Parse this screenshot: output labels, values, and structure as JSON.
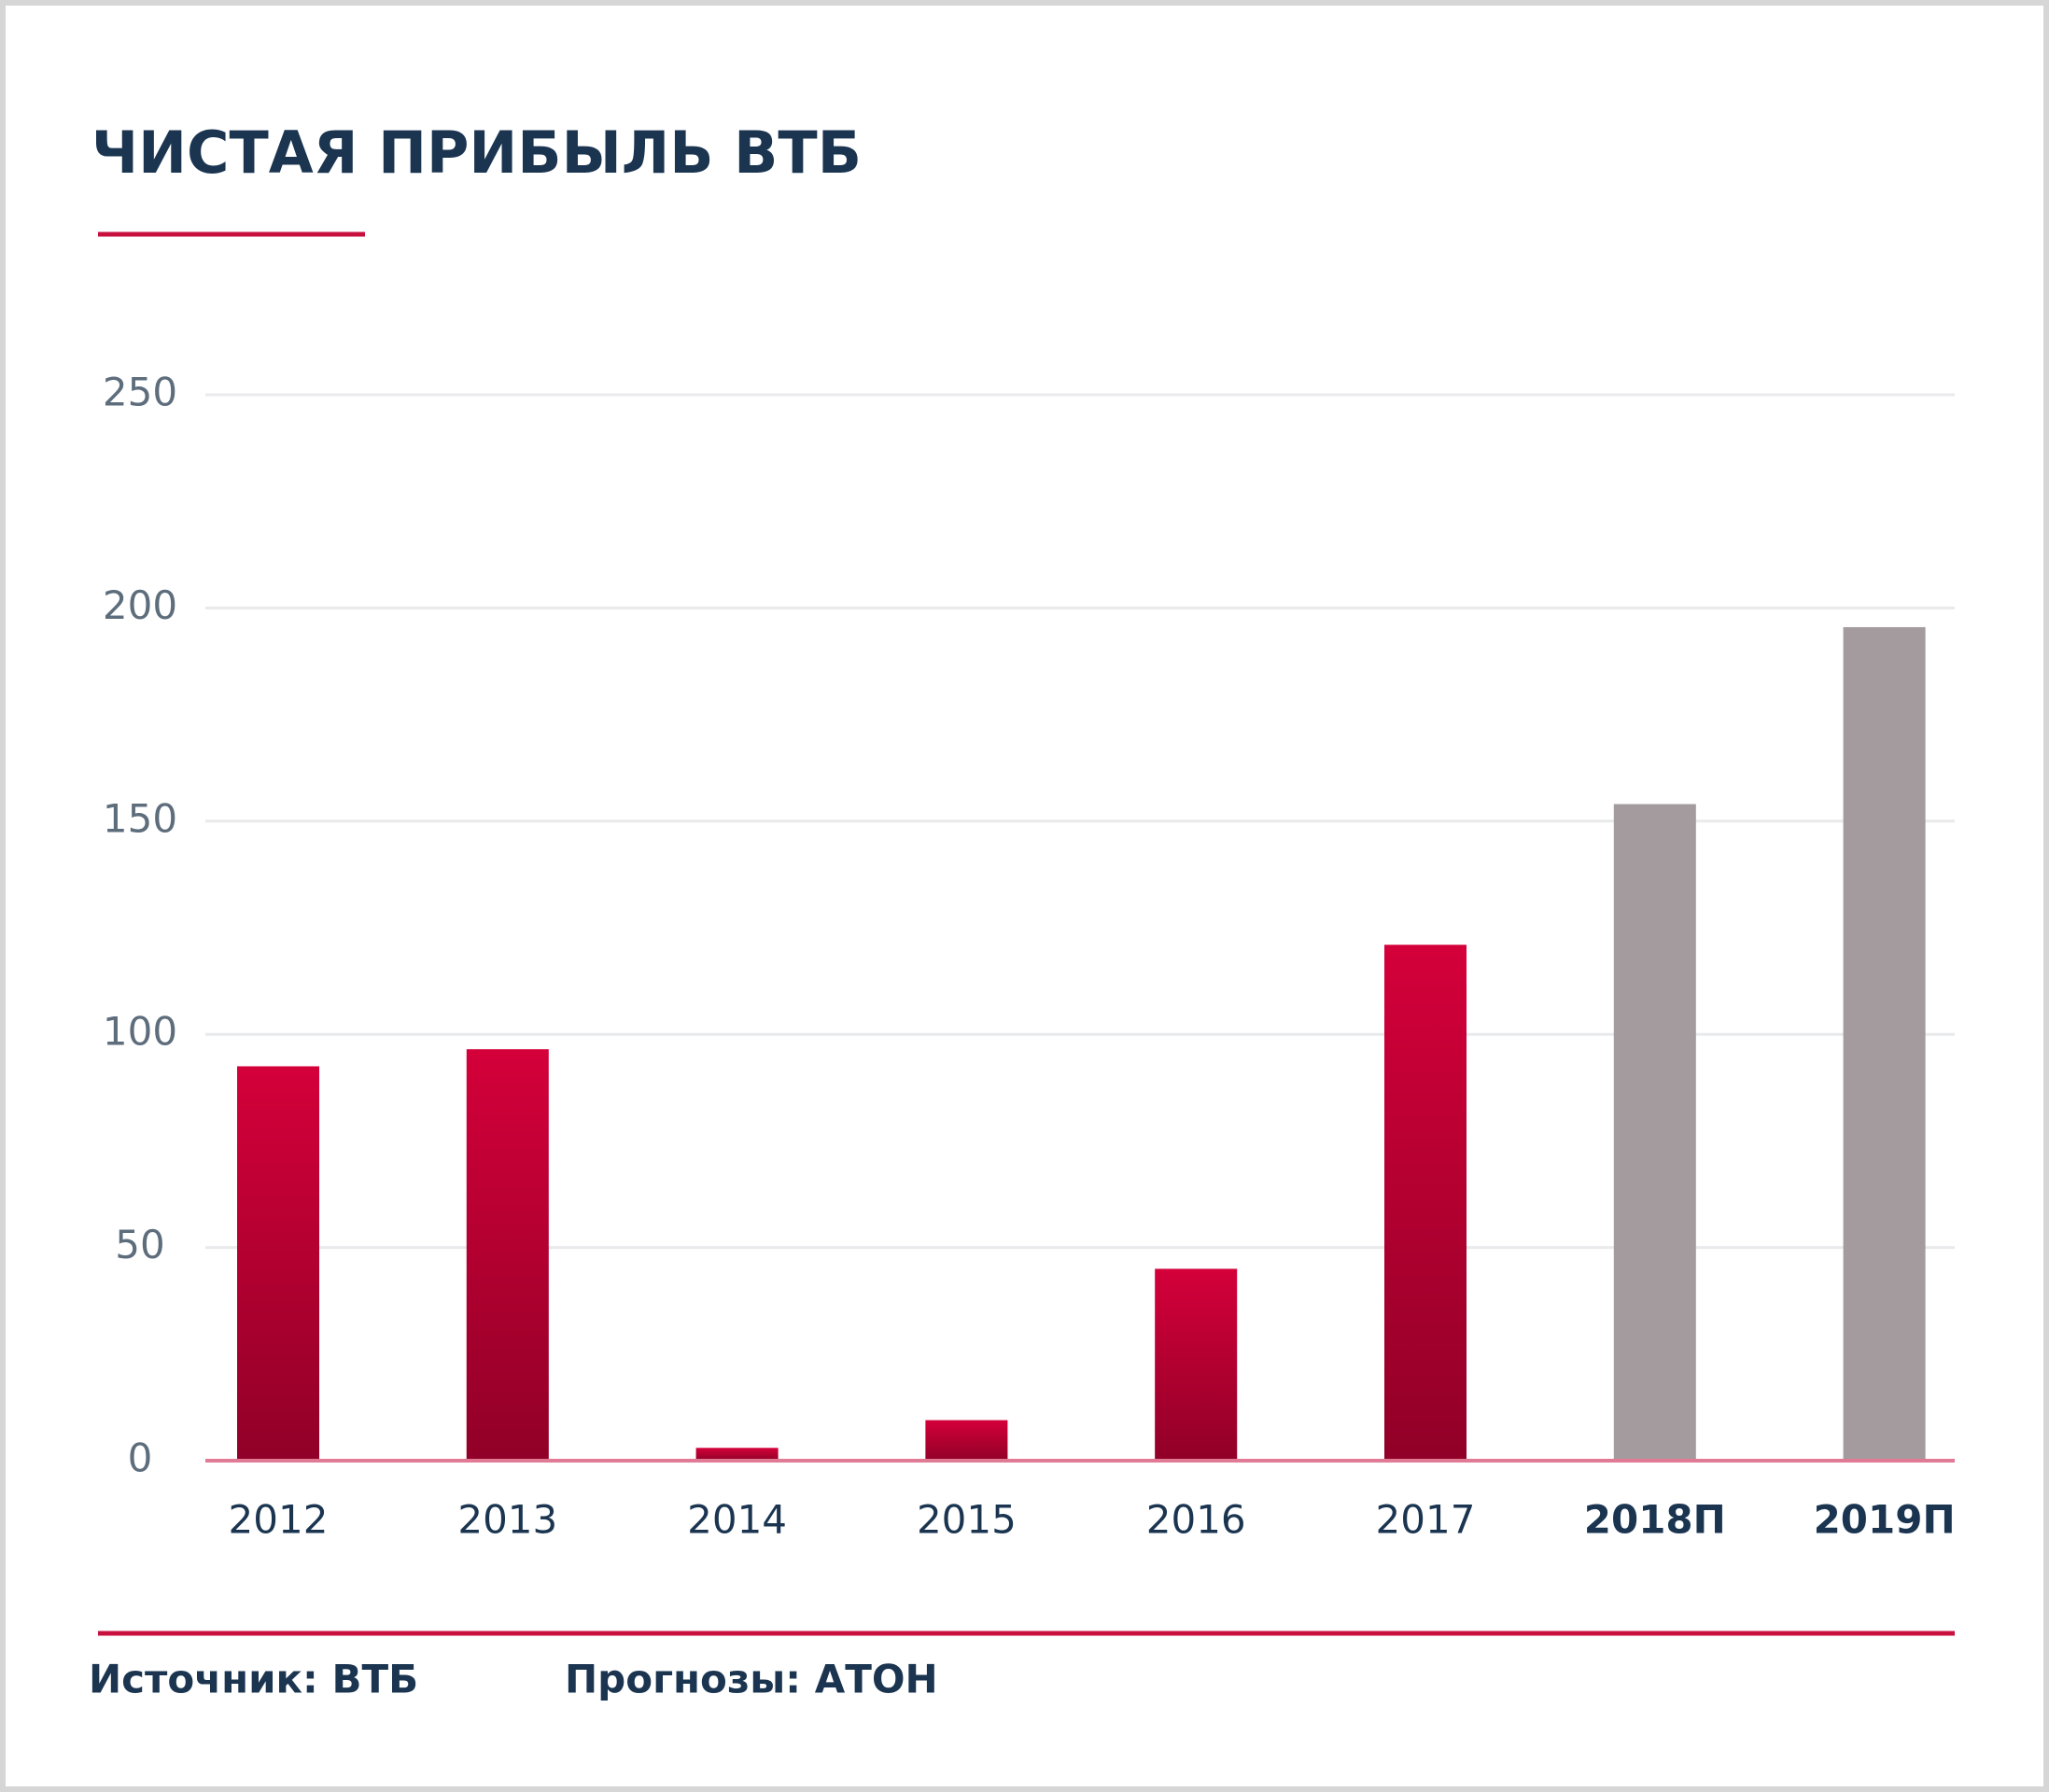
{
  "chart_data": {
    "type": "bar",
    "title": "ЧИСТАЯ ПРИБЫЛЬ ВТБ",
    "categories": [
      "2012",
      "2013",
      "2014",
      "2015",
      "2016",
      "2017",
      "2018П",
      "2019П"
    ],
    "values": [
      92.5,
      96.5,
      3,
      9.5,
      45,
      121,
      154,
      195.5
    ],
    "colors": [
      "#d4003a",
      "#d4003a",
      "#d4003a",
      "#d4003a",
      "#d4003a",
      "#d4003a",
      "#a39b9d",
      "#a39b9d"
    ],
    "ylim": [
      0,
      250
    ],
    "yticks": [
      0,
      50,
      100,
      150,
      200,
      250
    ],
    "grid": true,
    "notes": [
      "Источник: ВТБ",
      "Прогнозы: АТОН"
    ]
  }
}
